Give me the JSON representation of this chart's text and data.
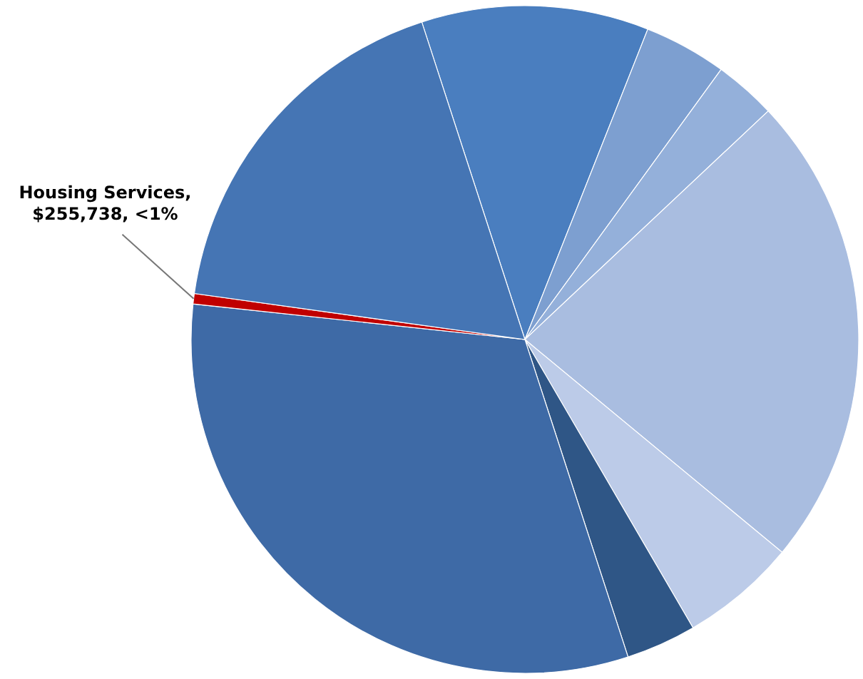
{
  "chart_data": {
    "type": "pie",
    "categories": [
      null,
      null,
      null,
      null,
      null,
      null,
      null,
      null,
      null
    ],
    "values": [
      11,
      4,
      3,
      23,
      5.6,
      3.4,
      31.7,
      0.5,
      17.8
    ],
    "colors": [
      "#4a7ebf",
      "#7d9fd0",
      "#94b0da",
      "#a9bde0",
      "#bccbe8",
      "#2f5686",
      "#3e6aa6",
      "#c00000",
      "#4575b4"
    ],
    "annotations": [
      "Housing Services, $255,738, <1%"
    ]
  }
}
